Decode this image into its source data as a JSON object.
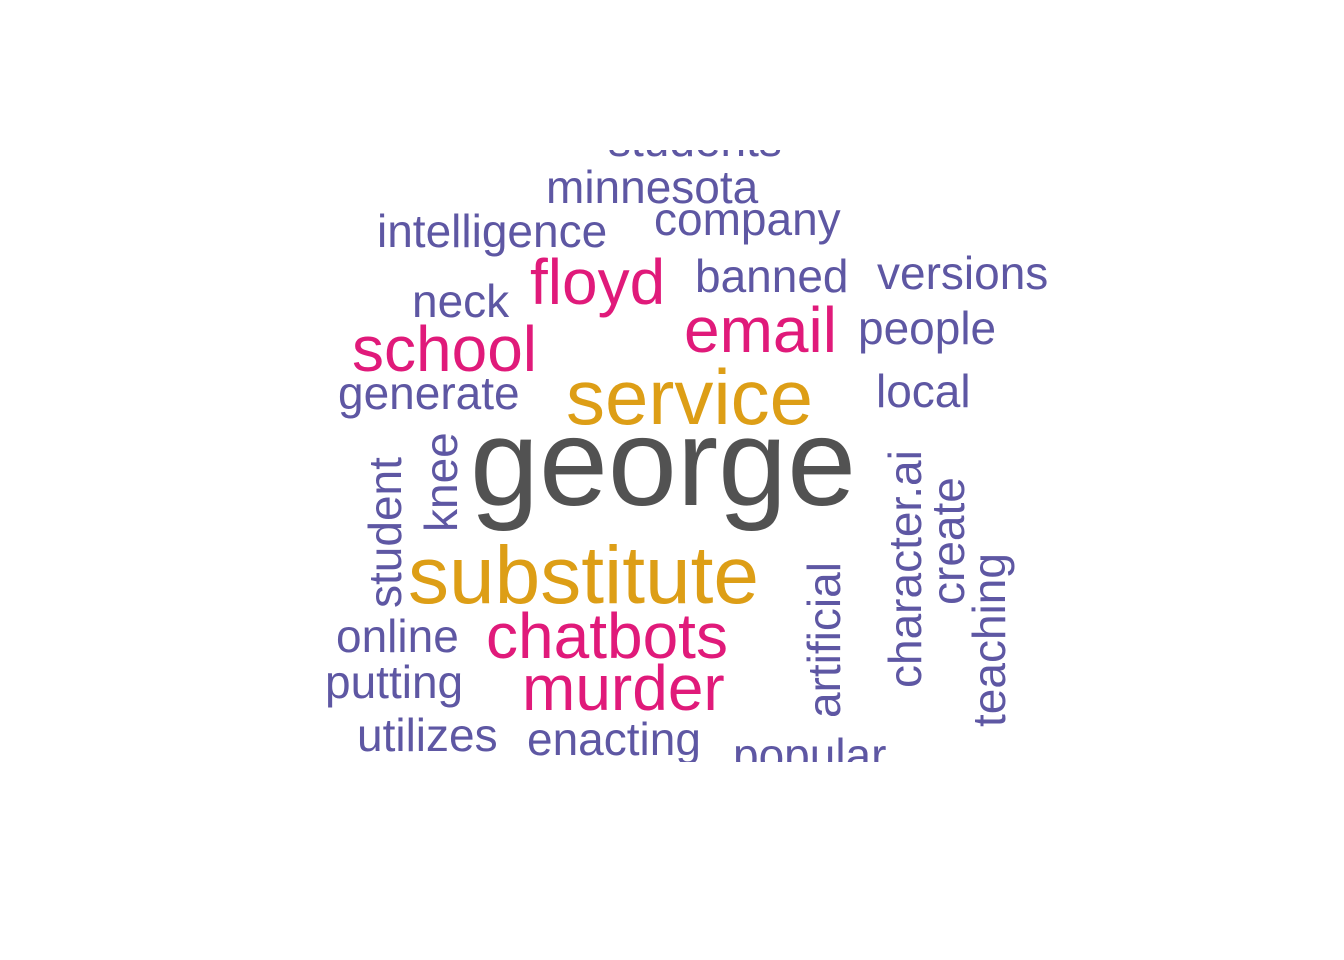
{
  "colors": {
    "low_frequency": "#5e57a3",
    "mid_frequency": "#e01a7a",
    "high_frequency": "#dd9e16",
    "top_frequency": "#525252",
    "background": "#ffffff"
  },
  "words": {
    "students": "students",
    "minnesota": "minnesota",
    "intelligence": "intelligence",
    "company": "company",
    "floyd": "floyd",
    "banned": "banned",
    "versions": "versions",
    "neck": "neck",
    "email": "email",
    "people": "people",
    "school": "school",
    "service": "service",
    "generate": "generate",
    "local": "local",
    "george": "george",
    "knee": "knee",
    "student": "student",
    "character_ai": "character.ai",
    "create": "create",
    "teaching": "teaching",
    "substitute": "substitute",
    "artificial": "artificial",
    "online": "online",
    "chatbots": "chatbots",
    "putting": "putting",
    "murder": "murder",
    "utilizes": "utilizes",
    "enacting": "enacting",
    "popular": "popular"
  }
}
